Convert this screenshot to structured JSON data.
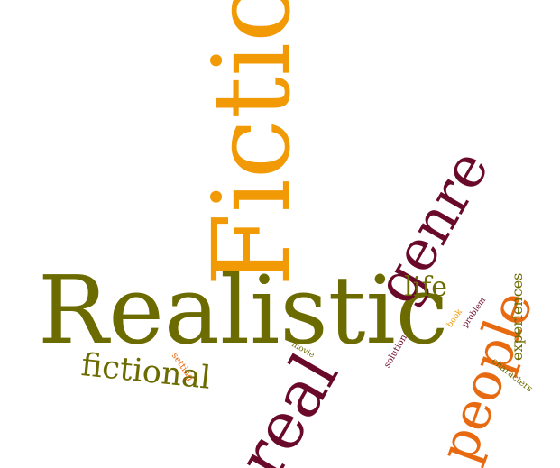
{
  "words": {
    "realistic": "Realistic",
    "fiction": "Fiction",
    "genre": "genre",
    "real": "real",
    "people": "people",
    "fictional": "fictional",
    "life": "life",
    "experiences": "experiences",
    "characters": "characters",
    "problem": "problem",
    "book": "book",
    "solution": "solution",
    "movie": "movie",
    "setting": "setting"
  },
  "colors": {
    "olive": "#6b6b00",
    "orange": "#f19a06",
    "maroon": "#6a0a2a",
    "dark_orange": "#e86a10"
  }
}
